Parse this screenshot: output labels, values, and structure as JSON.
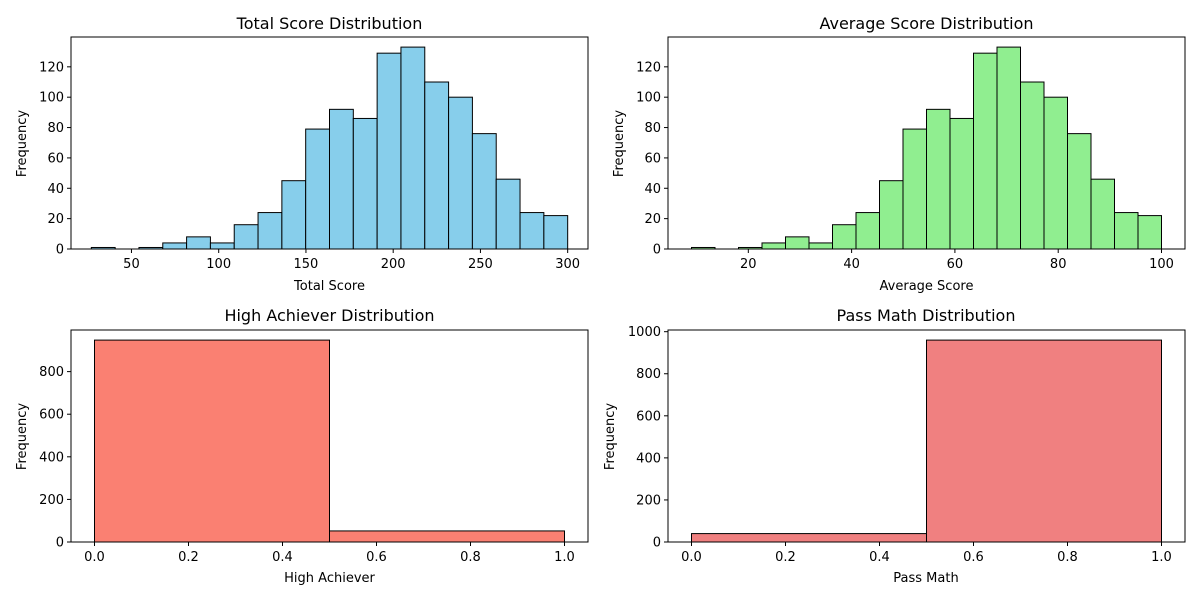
{
  "chart_data": [
    {
      "type": "bar",
      "title": "Total Score Distribution",
      "xlabel": "Total Score",
      "ylabel": "Frequency",
      "color": "#87CEEB",
      "bin_edges": [
        27,
        40.65,
        54.3,
        67.95,
        81.6,
        95.25,
        108.9,
        122.55,
        136.2,
        149.85,
        163.5,
        177.15,
        190.8,
        204.45,
        218.1,
        231.75,
        245.4,
        259.05,
        272.7,
        286.35,
        300
      ],
      "values": [
        1,
        0,
        1,
        4,
        8,
        4,
        16,
        24,
        45,
        79,
        92,
        86,
        129,
        133,
        110,
        100,
        76,
        46,
        24,
        22
      ],
      "xlim": [
        15.35,
        311.65
      ],
      "ylim": [
        0,
        139.65
      ],
      "xticks": [
        50,
        100,
        150,
        200,
        250,
        300
      ],
      "yticks": [
        0,
        20,
        40,
        60,
        80,
        100,
        120
      ],
      "grid": false
    },
    {
      "type": "bar",
      "title": "Average Score Distribution",
      "xlabel": "Average Score",
      "ylabel": "Frequency",
      "color": "#90EE90",
      "bin_edges": [
        9,
        13.55,
        18.1,
        22.65,
        27.2,
        31.75,
        36.3,
        40.85,
        45.4,
        49.95,
        54.5,
        59.05,
        63.6,
        68.15,
        72.7,
        77.25,
        81.8,
        86.35,
        90.9,
        95.45,
        100
      ],
      "values": [
        1,
        0,
        1,
        4,
        8,
        4,
        16,
        24,
        45,
        79,
        92,
        86,
        129,
        133,
        110,
        100,
        76,
        46,
        24,
        22
      ],
      "xlim": [
        4.45,
        104.55
      ],
      "ylim": [
        0,
        139.65
      ],
      "xticks": [
        20,
        40,
        60,
        80,
        100
      ],
      "yticks": [
        0,
        20,
        40,
        60,
        80,
        100,
        120
      ],
      "grid": false
    },
    {
      "type": "bar",
      "title": "High Achiever Distribution",
      "xlabel": "High Achiever",
      "ylabel": "Frequency",
      "color": "#FA8072",
      "bin_edges": [
        0,
        0.5,
        1
      ],
      "values": [
        948,
        52
      ],
      "xlim": [
        -0.05,
        1.05
      ],
      "ylim": [
        0,
        995.4
      ],
      "xticks": [
        0.0,
        0.2,
        0.4,
        0.6,
        0.8,
        1.0
      ],
      "yticks": [
        0,
        200,
        400,
        600,
        800
      ],
      "grid": false
    },
    {
      "type": "bar",
      "title": "Pass Math Distribution",
      "xlabel": "Pass Math",
      "ylabel": "Frequency",
      "color": "#F08080",
      "bin_edges": [
        0,
        0.5,
        1
      ],
      "values": [
        40,
        960
      ],
      "xlim": [
        -0.05,
        1.05
      ],
      "ylim": [
        0,
        1008
      ],
      "xticks": [
        0.0,
        0.2,
        0.4,
        0.6,
        0.8,
        1.0
      ],
      "yticks": [
        0,
        200,
        400,
        600,
        800,
        1000
      ],
      "grid": false
    }
  ]
}
